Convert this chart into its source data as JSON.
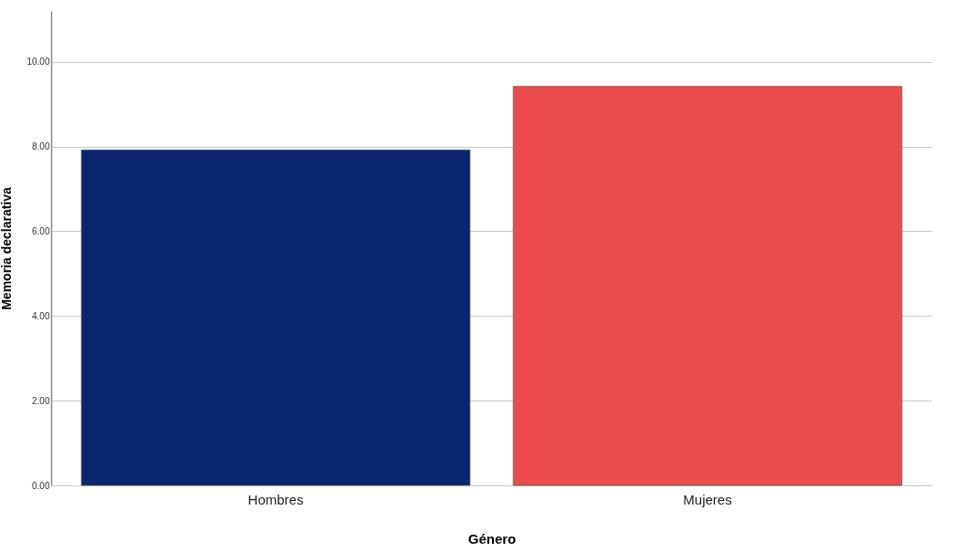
{
  "chart_data": {
    "type": "bar",
    "xlabel": "Género",
    "ylabel": "Memoria declarativa",
    "categories": [
      "Hombres",
      "Mujeres"
    ],
    "values": [
      7.92,
      9.42
    ],
    "colors": [
      "#0a2570",
      "#ec4b4c"
    ],
    "ylim": [
      0,
      11.2
    ],
    "yticks": [
      {
        "value": 0,
        "label": "0.00"
      },
      {
        "value": 2,
        "label": "2.00"
      },
      {
        "value": 4,
        "label": "4.00"
      },
      {
        "value": 6,
        "label": "6.00"
      },
      {
        "value": 8,
        "label": "8.00"
      },
      {
        "value": 10,
        "label": "10.00"
      }
    ],
    "grid": true
  }
}
